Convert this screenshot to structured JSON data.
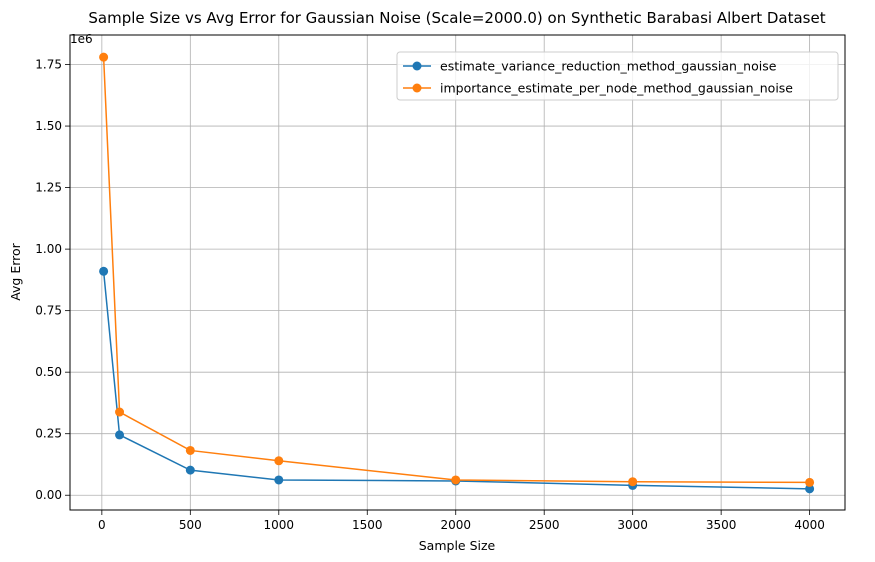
{
  "chart_data": {
    "type": "line",
    "title": "Sample Size vs Avg Error for Gaussian Noise (Scale=2000.0) on Synthetic Barabasi Albert Dataset",
    "xlabel": "Sample Size",
    "ylabel": "Avg Error",
    "y_offset_label": "1e6",
    "xlim": [
      -180,
      4200
    ],
    "ylim": [
      -0.06,
      1.87
    ],
    "x_ticks": [
      0,
      500,
      1000,
      1500,
      2000,
      2500,
      3000,
      3500,
      4000
    ],
    "x_tick_labels": [
      "0",
      "500",
      "1000",
      "1500",
      "2000",
      "2500",
      "3000",
      "3500",
      "4000"
    ],
    "y_ticks": [
      0.0,
      0.25,
      0.5,
      0.75,
      1.0,
      1.25,
      1.5,
      1.75
    ],
    "y_tick_labels": [
      "0.00",
      "0.25",
      "0.50",
      "0.75",
      "1.00",
      "1.25",
      "1.50",
      "1.75"
    ],
    "grid": true,
    "legend_position": "top-right",
    "x": [
      10,
      100,
      500,
      1000,
      2000,
      3000,
      4000
    ],
    "series": [
      {
        "name": "estimate_variance_reduction_method_gaussian_noise",
        "color": "#1f77b4",
        "values": [
          0.91,
          0.245,
          0.102,
          0.062,
          0.058,
          0.04,
          0.026
        ]
      },
      {
        "name": "importance_estimate_per_node_method_gaussian_noise",
        "color": "#ff7f0e",
        "values": [
          1.78,
          0.338,
          0.182,
          0.14,
          0.062,
          0.055,
          0.052
        ]
      }
    ]
  }
}
